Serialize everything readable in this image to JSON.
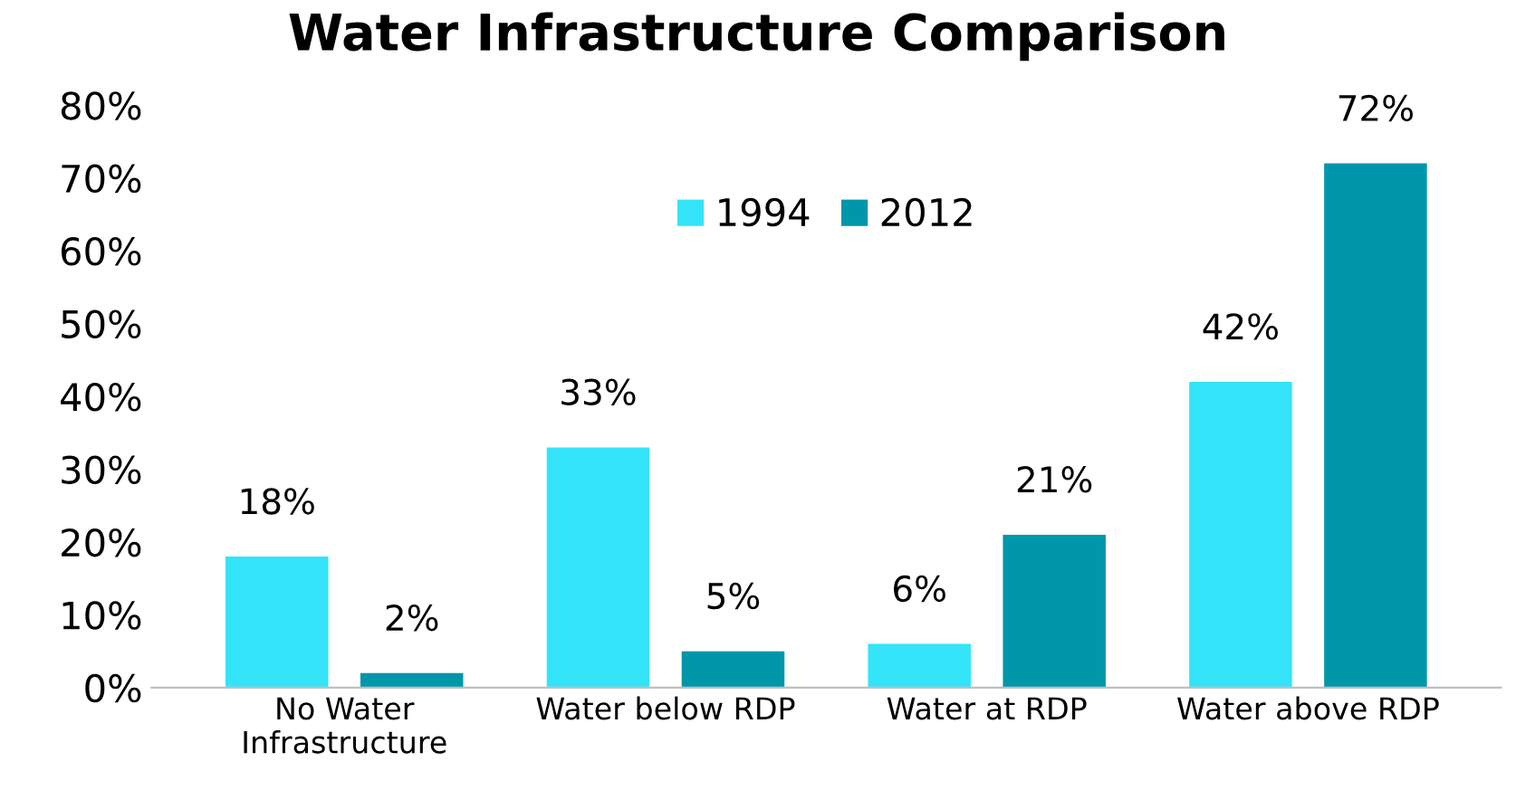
{
  "chart_data": {
    "type": "bar",
    "title": "Water Infrastructure Comparison",
    "categories": [
      "No Water\nInfrastructure",
      "Water below RDP",
      "Water at RDP",
      "Water above RDP"
    ],
    "series": [
      {
        "name": "1994",
        "color": "#33e4f8",
        "values": [
          18,
          33,
          6,
          42
        ],
        "value_labels": [
          "18%",
          "33%",
          "6%",
          "42%"
        ]
      },
      {
        "name": "2012",
        "color": "#0097aa",
        "values": [
          2,
          5,
          21,
          72
        ],
        "value_labels": [
          "2%",
          "5%",
          "21%",
          "72%"
        ]
      }
    ],
    "ylim": [
      0,
      80
    ],
    "yticks": [
      {
        "value": 0,
        "label": "0%"
      },
      {
        "value": 10,
        "label": "10%"
      },
      {
        "value": 20,
        "label": "20%"
      },
      {
        "value": 30,
        "label": "30%"
      },
      {
        "value": 40,
        "label": "40%"
      },
      {
        "value": 50,
        "label": "50%"
      },
      {
        "value": 60,
        "label": "60%"
      },
      {
        "value": 70,
        "label": "70%"
      },
      {
        "value": 80,
        "label": "80%"
      }
    ],
    "grid": false,
    "legend": "top"
  }
}
